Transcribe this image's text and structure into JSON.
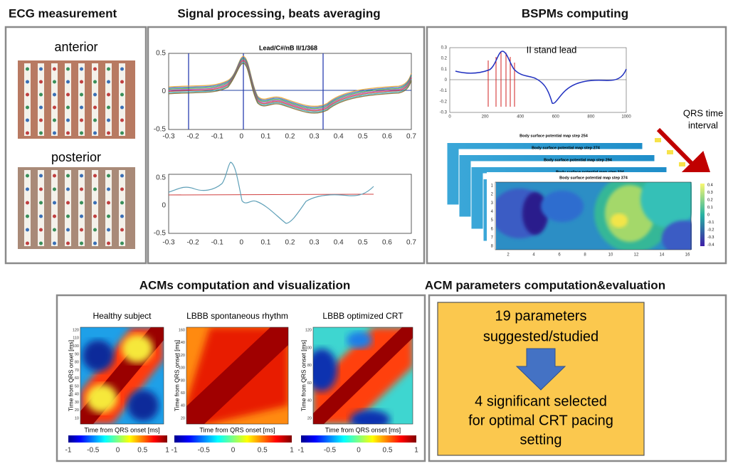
{
  "panels": {
    "ecg": {
      "title": "ECG measurement",
      "anterior": "anterior",
      "posterior": "posterior"
    },
    "signal": {
      "title": "Signal processing, beats averaging",
      "plot_title": "Lead/C#/nB II/1/368",
      "top_yticks": [
        "0.5",
        "0",
        "-0.5"
      ],
      "top_xticks": [
        "-0.3",
        "-0.2",
        "-0.1",
        "0",
        "0.1",
        "0.2",
        "0.3",
        "0.4",
        "0.5",
        "0.6",
        "0.7"
      ],
      "bottom_yticks": [
        "0.5",
        "0",
        "-0.5"
      ],
      "bottom_xticks": [
        "-0.3",
        "-0.2",
        "-0.1",
        "0",
        "0.1",
        "0.2",
        "0.3",
        "0.4",
        "0.5",
        "0.6",
        "0.7"
      ]
    },
    "bspm": {
      "title": "BSPMs computing",
      "lead_label": "II stand lead",
      "yticks": [
        "0.3",
        "0.2",
        "0.1",
        "0",
        "-0.1",
        "-0.2",
        "-0.3"
      ],
      "xticks": [
        "0",
        "200",
        "400",
        "600",
        "800",
        "1000"
      ],
      "qrs_label": [
        "QRS time",
        "interval"
      ],
      "maps": [
        "Body surface potential map   step 254",
        "Body surface potential map   step 274",
        "Body surface potential map   step 294",
        "Body surface potential map   step 334",
        "Body surface potential map   step 374"
      ],
      "map_xticks": [
        "2",
        "4",
        "6",
        "8",
        "10",
        "12",
        "14",
        "16"
      ],
      "map_yticks": [
        "1",
        "2",
        "3",
        "4",
        "5",
        "6",
        "7",
        "8"
      ],
      "colorbar_ticks": [
        "0.4",
        "0.3",
        "0.2",
        "0.1",
        "0",
        "-0.1",
        "-0.2",
        "-0.3",
        "-0.4"
      ]
    },
    "acm": {
      "title": "ACMs computation and visualization",
      "ylabel": "Time from QRS onset [ms]",
      "xlabel": "Time from QRS onset [ms]",
      "colorbar_ticks": [
        "-1",
        "-0.5",
        "0",
        "0.5",
        "1"
      ],
      "maps": [
        {
          "title": "Healthy subject",
          "yticks": [
            "120",
            "110",
            "100",
            "90",
            "80",
            "70",
            "60",
            "50",
            "40",
            "30",
            "20",
            "10"
          ]
        },
        {
          "title": "LBBB spontaneous rhythm",
          "yticks": [
            "160",
            "140",
            "120",
            "100",
            "80",
            "60",
            "40",
            "20"
          ]
        },
        {
          "title": "LBBB optimized CRT",
          "yticks": [
            "120",
            "100",
            "80",
            "60",
            "40",
            "20"
          ]
        }
      ]
    },
    "params": {
      "title": "ACM parameters computation&evaluation",
      "box_top": [
        "19 parameters",
        "suggested/studied"
      ],
      "box_bottom": [
        "4 significant  selected",
        "for optimal CRT pacing",
        "setting"
      ]
    }
  }
}
